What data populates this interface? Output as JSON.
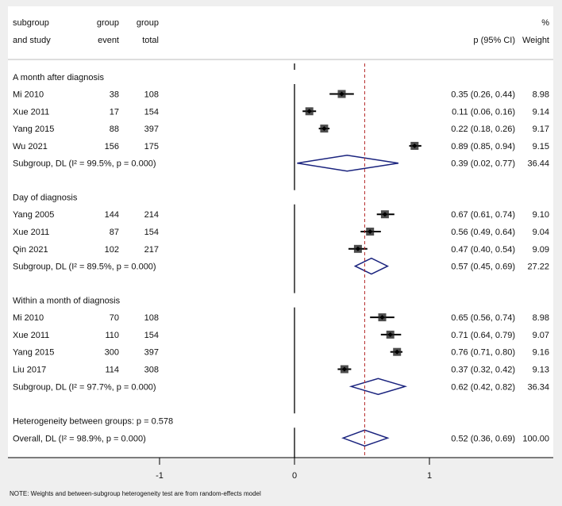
{
  "chart_data": {
    "type": "forest",
    "headers": {
      "study": [
        "subgroup",
        "and study"
      ],
      "event": [
        "group",
        "event"
      ],
      "total": [
        "group",
        "total"
      ],
      "ci": [
        "",
        "p (95% CI)"
      ],
      "weight": [
        "%",
        "Weight"
      ]
    },
    "xlim": [
      -2,
      2
    ],
    "xticks": [
      -1,
      0,
      1
    ],
    "xtick_labels": [
      "-1",
      "0",
      "1"
    ],
    "overall_line": 0.52,
    "colors": {
      "point": "#000000",
      "diamond": "#1a237e",
      "overall_line": "#b22222"
    },
    "groups": [
      {
        "label": "A month after diagnosis",
        "studies": [
          {
            "name": "Mi 2010",
            "event": "38",
            "total": "108",
            "p": 0.35,
            "lo": 0.26,
            "hi": 0.44,
            "ci": "0.35 (0.26, 0.44)",
            "weight": "8.98"
          },
          {
            "name": "Xue 2011",
            "event": "17",
            "total": "154",
            "p": 0.11,
            "lo": 0.06,
            "hi": 0.16,
            "ci": "0.11 (0.06, 0.16)",
            "weight": "9.14"
          },
          {
            "name": "Yang 2015",
            "event": "88",
            "total": "397",
            "p": 0.22,
            "lo": 0.18,
            "hi": 0.26,
            "ci": "0.22 (0.18, 0.26)",
            "weight": "9.17"
          },
          {
            "name": "Wu 2021",
            "event": "156",
            "total": "175",
            "p": 0.89,
            "lo": 0.85,
            "hi": 0.94,
            "ci": "0.89 (0.85, 0.94)",
            "weight": "9.15"
          }
        ],
        "summary": {
          "label": "Subgroup, DL (I² = 99.5%, p = 0.000)",
          "p": 0.39,
          "lo": 0.02,
          "hi": 0.77,
          "ci": "0.39 (0.02, 0.77)",
          "weight": "36.44"
        }
      },
      {
        "label": "Day of diagnosis",
        "studies": [
          {
            "name": "Yang 2005",
            "event": "144",
            "total": "214",
            "p": 0.67,
            "lo": 0.61,
            "hi": 0.74,
            "ci": "0.67 (0.61, 0.74)",
            "weight": "9.10"
          },
          {
            "name": "Xue 2011",
            "event": "87",
            "total": "154",
            "p": 0.56,
            "lo": 0.49,
            "hi": 0.64,
            "ci": "0.56 (0.49, 0.64)",
            "weight": "9.04"
          },
          {
            "name": "Qin 2021",
            "event": "102",
            "total": "217",
            "p": 0.47,
            "lo": 0.4,
            "hi": 0.54,
            "ci": "0.47 (0.40, 0.54)",
            "weight": "9.09"
          }
        ],
        "summary": {
          "label": "Subgroup, DL (I² = 89.5%, p = 0.000)",
          "p": 0.57,
          "lo": 0.45,
          "hi": 0.69,
          "ci": "0.57 (0.45, 0.69)",
          "weight": "27.22"
        }
      },
      {
        "label": "Within a month of diagnosis",
        "studies": [
          {
            "name": "Mi 2010",
            "event": "70",
            "total": "108",
            "p": 0.65,
            "lo": 0.56,
            "hi": 0.74,
            "ci": "0.65 (0.56, 0.74)",
            "weight": "8.98"
          },
          {
            "name": "Xue 2011",
            "event": "110",
            "total": "154",
            "p": 0.71,
            "lo": 0.64,
            "hi": 0.79,
            "ci": "0.71 (0.64, 0.79)",
            "weight": "9.07"
          },
          {
            "name": "Yang 2015",
            "event": "300",
            "total": "397",
            "p": 0.76,
            "lo": 0.71,
            "hi": 0.8,
            "ci": "0.76 (0.71, 0.80)",
            "weight": "9.16"
          },
          {
            "name": "Liu 2017",
            "event": "114",
            "total": "308",
            "p": 0.37,
            "lo": 0.32,
            "hi": 0.42,
            "ci": "0.37 (0.32, 0.42)",
            "weight": "9.13"
          }
        ],
        "summary": {
          "label": "Subgroup, DL (I² = 97.7%, p = 0.000)",
          "p": 0.62,
          "lo": 0.42,
          "hi": 0.82,
          "ci": "0.62 (0.42, 0.82)",
          "weight": "36.34"
        }
      }
    ],
    "heterogeneity": "Heterogeneity between groups: p = 0.578",
    "overall": {
      "label": "Overall, DL (I² = 98.9%, p = 0.000)",
      "p": 0.52,
      "lo": 0.36,
      "hi": 0.69,
      "ci": "0.52 (0.36, 0.69)",
      "weight": "100.00"
    },
    "note": "NOTE: Weights and between-subgroup heterogeneity test are from random-effects model"
  }
}
